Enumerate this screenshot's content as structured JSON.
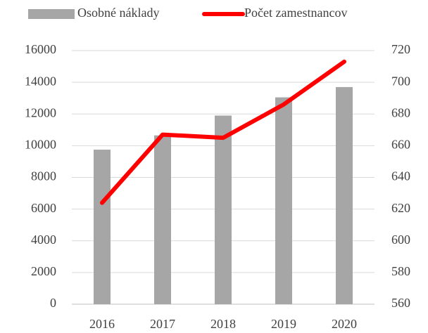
{
  "chart_data": {
    "type": "bar",
    "categories": [
      "2016",
      "2017",
      "2018",
      "2019",
      "2020"
    ],
    "series": [
      {
        "name": "Osobné náklady",
        "color": "#a6a6a6",
        "values": [
          9750,
          10650,
          11900,
          13050,
          13700
        ]
      },
      {
        "name": "Počet zamestnancov",
        "color": "#ff0000",
        "type": "line",
        "axis": "y2",
        "values": [
          624,
          667,
          665,
          686,
          713
        ]
      }
    ],
    "ylim": [
      0,
      16000
    ],
    "yticks": [
      0,
      2000,
      4000,
      6000,
      8000,
      10000,
      12000,
      14000,
      16000
    ],
    "y2lim": [
      560,
      720
    ],
    "y2ticks": [
      560,
      580,
      600,
      620,
      640,
      660,
      680,
      700,
      720
    ],
    "grid": true,
    "legend": "top"
  }
}
